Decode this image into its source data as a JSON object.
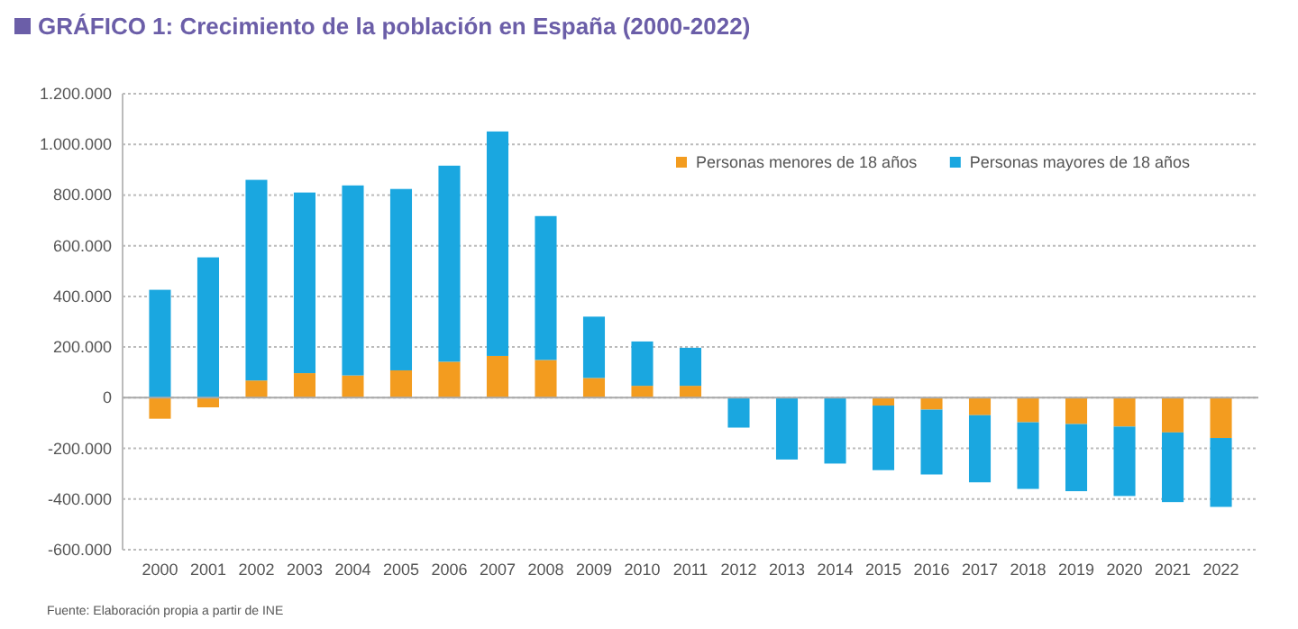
{
  "chart_data": {
    "type": "bar",
    "stacked": true,
    "title": "GRÁFICO 1: Crecimiento de la población en España (2000-2022)",
    "annotations": [
      "Fuente: Elaboración propia a partir de INE"
    ],
    "categories": [
      "2000",
      "2001",
      "2002",
      "2003",
      "2004",
      "2005",
      "2006",
      "2007",
      "2008",
      "2009",
      "2010",
      "2011",
      "2012",
      "2013",
      "2014",
      "2015",
      "2016",
      "2017",
      "2018",
      "2019",
      "2020",
      "2021",
      "2022"
    ],
    "series": [
      {
        "name": "Personas menores de 18 años",
        "color": "#f39c1f",
        "values": [
          -83000,
          -38000,
          68000,
          97000,
          88000,
          108000,
          142000,
          165000,
          149000,
          78000,
          47000,
          47000,
          0,
          0,
          0,
          -31000,
          -47000,
          -69000,
          -97000,
          -104000,
          -114000,
          -137000,
          -159000
        ]
      },
      {
        "name": "Personas mayores de 18 años",
        "color": "#1aa7e0",
        "values": [
          426000,
          554000,
          792000,
          713000,
          750000,
          716000,
          774000,
          886000,
          568000,
          242000,
          175000,
          150000,
          -118000,
          -244000,
          -260000,
          -255000,
          -256000,
          -265000,
          -263000,
          -265000,
          -274000,
          -275000,
          -272000
        ]
      }
    ],
    "ylim": [
      -600000,
      1200000
    ],
    "yticks": [
      {
        "value": -600000,
        "label": "-600.000"
      },
      {
        "value": -400000,
        "label": "-400.000"
      },
      {
        "value": -200000,
        "label": "-200.000"
      },
      0,
      {
        "value": 200000,
        "label": "200.000"
      },
      {
        "value": 400000,
        "label": "400.000"
      },
      {
        "value": 600000,
        "label": "600.000"
      },
      {
        "value": 800000,
        "label": "800.000"
      },
      {
        "value": 1000000,
        "label": "1.000.000"
      },
      {
        "value": 1200000,
        "label": "1.200.000"
      }
    ],
    "grid": "y",
    "legend": "top right"
  }
}
